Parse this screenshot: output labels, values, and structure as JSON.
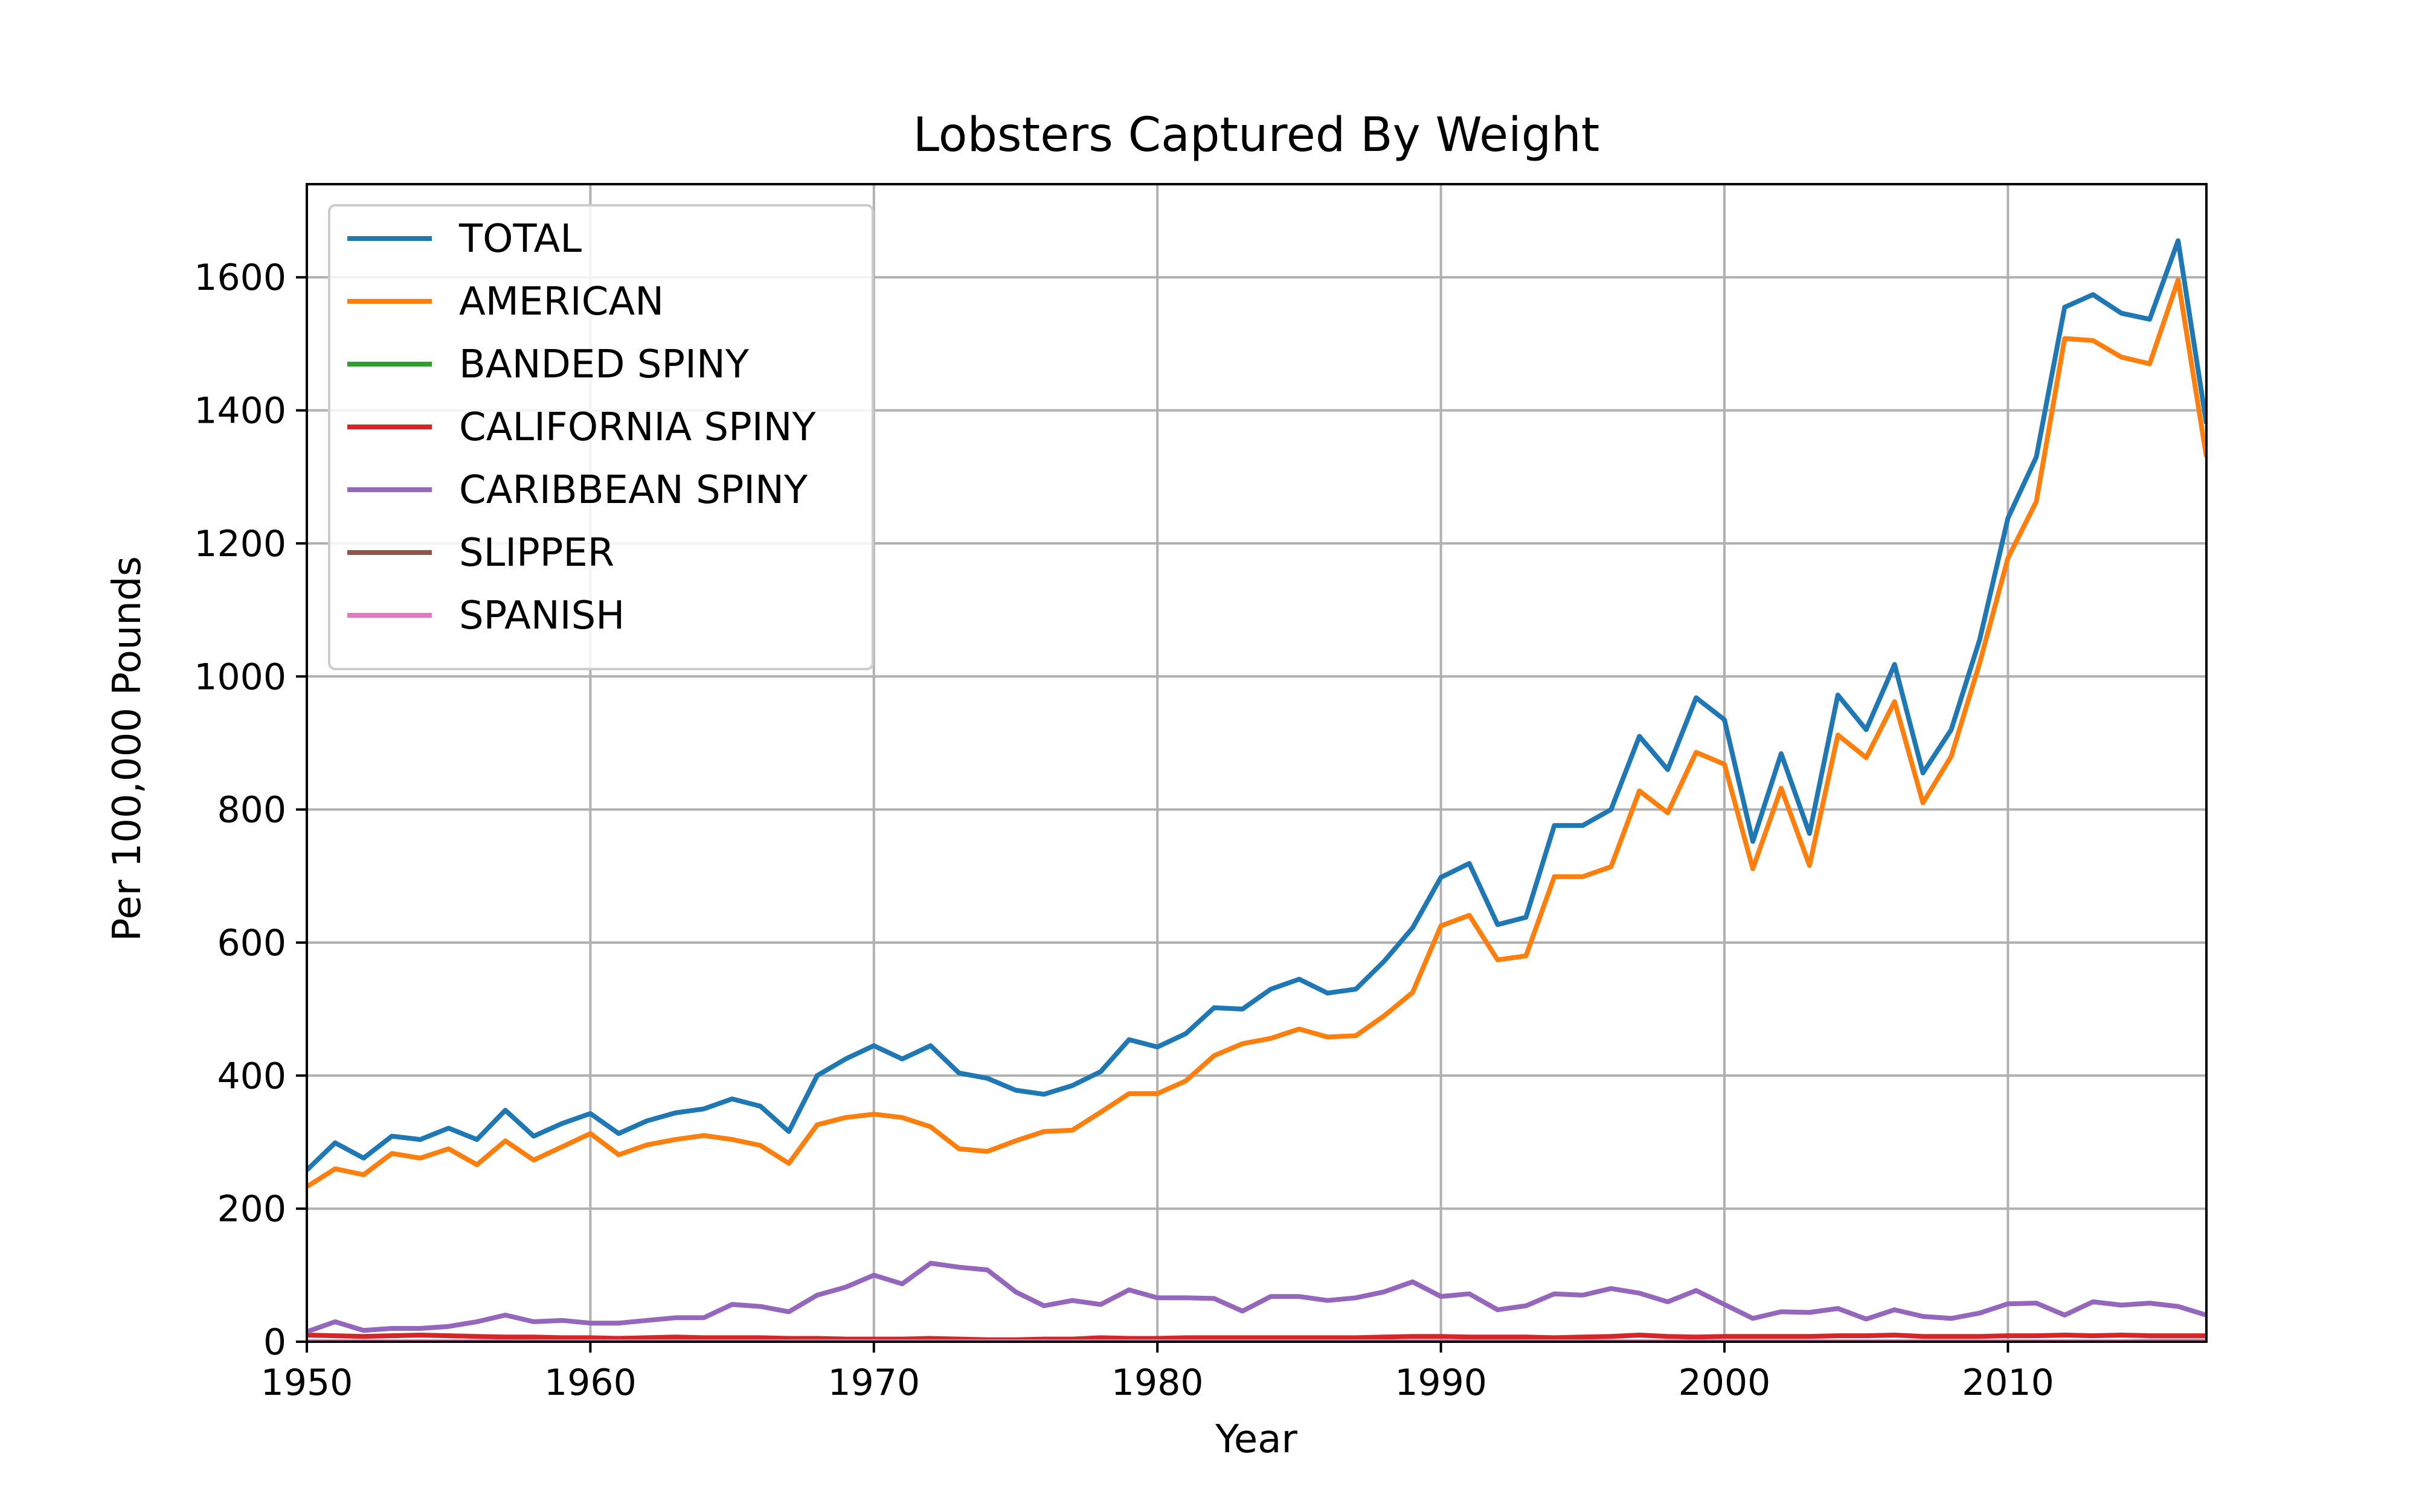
{
  "chart_data": {
    "type": "line",
    "title": "Lobsters Captured By Weight",
    "xlabel": "Year",
    "ylabel": "Per 100,000 Pounds",
    "xlim": [
      1950,
      2017
    ],
    "ylim": [
      0,
      1740
    ],
    "x_ticks": [
      1950,
      1960,
      1970,
      1980,
      1990,
      2000,
      2010
    ],
    "y_ticks": [
      0,
      200,
      400,
      600,
      800,
      1000,
      1200,
      1400,
      1600
    ],
    "grid": true,
    "legend_position": "upper-left",
    "x": [
      1950,
      1951,
      1952,
      1953,
      1954,
      1955,
      1956,
      1957,
      1958,
      1959,
      1960,
      1961,
      1962,
      1963,
      1964,
      1965,
      1966,
      1967,
      1968,
      1969,
      1970,
      1971,
      1972,
      1973,
      1974,
      1975,
      1976,
      1977,
      1978,
      1979,
      1980,
      1981,
      1982,
      1983,
      1984,
      1985,
      1986,
      1987,
      1988,
      1989,
      1990,
      1991,
      1992,
      1993,
      1994,
      1995,
      1996,
      1997,
      1998,
      1999,
      2000,
      2001,
      2002,
      2003,
      2004,
      2005,
      2006,
      2007,
      2008,
      2009,
      2010,
      2011,
      2012,
      2013,
      2014,
      2015,
      2016,
      2017
    ],
    "series": [
      {
        "name": "TOTAL",
        "color": "#1f77b4",
        "values": [
          258,
          299,
          276,
          309,
          304,
          321,
          304,
          348,
          309,
          328,
          343,
          313,
          332,
          344,
          350,
          365,
          354,
          316,
          400,
          425,
          445,
          425,
          445,
          404,
          396,
          378,
          372,
          385,
          406,
          454,
          443,
          463,
          502,
          500,
          530,
          545,
          524,
          530,
          572,
          622,
          698,
          719,
          627,
          638,
          776,
          776,
          800,
          910,
          860,
          968,
          935,
          752,
          884,
          764,
          972,
          920,
          1018,
          855,
          920,
          1055,
          1238,
          1330,
          1555,
          1574,
          1546,
          1537,
          1655,
          1380
        ]
      },
      {
        "name": "AMERICAN",
        "color": "#ff7f0e",
        "values": [
          233,
          260,
          251,
          283,
          276,
          290,
          266,
          302,
          273,
          293,
          313,
          281,
          296,
          304,
          310,
          304,
          295,
          268,
          326,
          337,
          342,
          337,
          323,
          290,
          286,
          302,
          316,
          318,
          345,
          373,
          373,
          392,
          430,
          448,
          456,
          470,
          458,
          460,
          490,
          525,
          625,
          641,
          574,
          580,
          699,
          699,
          714,
          828,
          795,
          886,
          868,
          711,
          832,
          716,
          912,
          878,
          962,
          810,
          880,
          1020,
          1178,
          1263,
          1508,
          1505,
          1480,
          1470,
          1596,
          1330
        ]
      },
      {
        "name": "BANDED SPINY",
        "color": "#2ca02c",
        "values": [
          0,
          0,
          0,
          0,
          0,
          0,
          0,
          0,
          0,
          0,
          0,
          0,
          0,
          0,
          0,
          0,
          0,
          0,
          0,
          0,
          0,
          0,
          0,
          0,
          0,
          0,
          0,
          0,
          0,
          0,
          0,
          0,
          0,
          0,
          0,
          0,
          0,
          0,
          0,
          0,
          0,
          0,
          0,
          0,
          0,
          0,
          0,
          0,
          0,
          0,
          0,
          0,
          0,
          0,
          0,
          0,
          0,
          0,
          0,
          0,
          0,
          0,
          0,
          0,
          0,
          0,
          0,
          0
        ]
      },
      {
        "name": "CALIFORNIA SPINY",
        "color": "#d62728",
        "values": [
          10,
          9,
          8,
          9,
          10,
          9,
          8,
          7,
          7,
          6,
          6,
          5,
          6,
          7,
          6,
          6,
          6,
          5,
          5,
          4,
          4,
          4,
          5,
          4,
          3,
          3,
          4,
          4,
          6,
          5,
          5,
          6,
          6,
          6,
          6,
          6,
          6,
          6,
          7,
          8,
          8,
          7,
          7,
          7,
          6,
          7,
          8,
          10,
          8,
          7,
          8,
          8,
          8,
          8,
          9,
          9,
          10,
          8,
          8,
          8,
          9,
          9,
          10,
          9,
          10,
          9,
          9,
          9
        ]
      },
      {
        "name": "CARIBBEAN SPINY",
        "color": "#9467bd",
        "values": [
          15,
          30,
          17,
          20,
          20,
          23,
          30,
          40,
          30,
          32,
          28,
          28,
          32,
          36,
          36,
          56,
          53,
          45,
          70,
          82,
          100,
          87,
          118,
          112,
          108,
          75,
          54,
          62,
          56,
          78,
          66,
          66,
          65,
          46,
          68,
          68,
          62,
          66,
          75,
          90,
          68,
          72,
          48,
          54,
          72,
          70,
          80,
          73,
          60,
          77,
          56,
          35,
          45,
          44,
          50,
          34,
          48,
          38,
          35,
          43,
          57,
          58,
          40,
          60,
          55,
          58,
          53,
          40
        ]
      },
      {
        "name": "SLIPPER",
        "color": "#8c564b",
        "values": [
          0,
          0,
          0,
          0,
          0,
          0,
          0,
          0,
          0,
          0,
          0,
          0,
          0,
          0,
          0,
          0,
          0,
          0,
          0,
          0,
          0,
          0,
          0,
          0,
          0,
          0,
          0,
          0,
          0,
          0,
          0,
          0,
          0,
          0,
          0,
          0,
          0,
          0,
          0,
          0,
          0,
          0,
          0,
          0,
          0,
          0,
          0,
          0,
          0,
          0,
          0,
          0,
          0,
          0,
          0,
          0,
          0,
          0,
          0,
          0,
          0,
          0,
          0,
          0,
          0,
          0,
          0,
          0
        ]
      },
      {
        "name": "SPANISH",
        "color": "#e377c2",
        "values": [
          0,
          0,
          0,
          0,
          0,
          0,
          0,
          0,
          0,
          0,
          0,
          0,
          0,
          0,
          0,
          0,
          0,
          0,
          0,
          0,
          0,
          0,
          0,
          0,
          0,
          0,
          0,
          0,
          0,
          0,
          0,
          0,
          0,
          0,
          0,
          0,
          0,
          0,
          0,
          0,
          0,
          0,
          0,
          0,
          0,
          0,
          0,
          0,
          0,
          0,
          0,
          0,
          0,
          0,
          0,
          0,
          0,
          0,
          0,
          0,
          0,
          0,
          0,
          0,
          0,
          1,
          1,
          1
        ]
      }
    ]
  }
}
